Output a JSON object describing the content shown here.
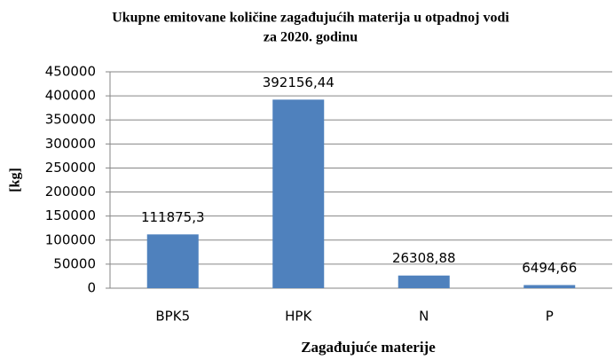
{
  "chart_data": {
    "type": "bar",
    "title": [
      "Ukupne emitovane količine zagađujućih materija u otpadnoj vodi",
      "za 2020. godinu"
    ],
    "x_label": "Zagađujuće materije",
    "y_label": "[kg]",
    "categories": [
      "BPK5",
      "HPK",
      "N",
      "P"
    ],
    "values": [
      111875.3,
      392156.44,
      26308.88,
      6494.66
    ],
    "value_labels": [
      "111875,3",
      "392156,44",
      "26308,88",
      "6494,66"
    ],
    "color": "#4f81bd",
    "ylim": [
      0,
      450000
    ],
    "yticks": [
      0,
      50000,
      100000,
      150000,
      200000,
      250000,
      300000,
      350000,
      400000,
      450000
    ],
    "grid": true
  }
}
